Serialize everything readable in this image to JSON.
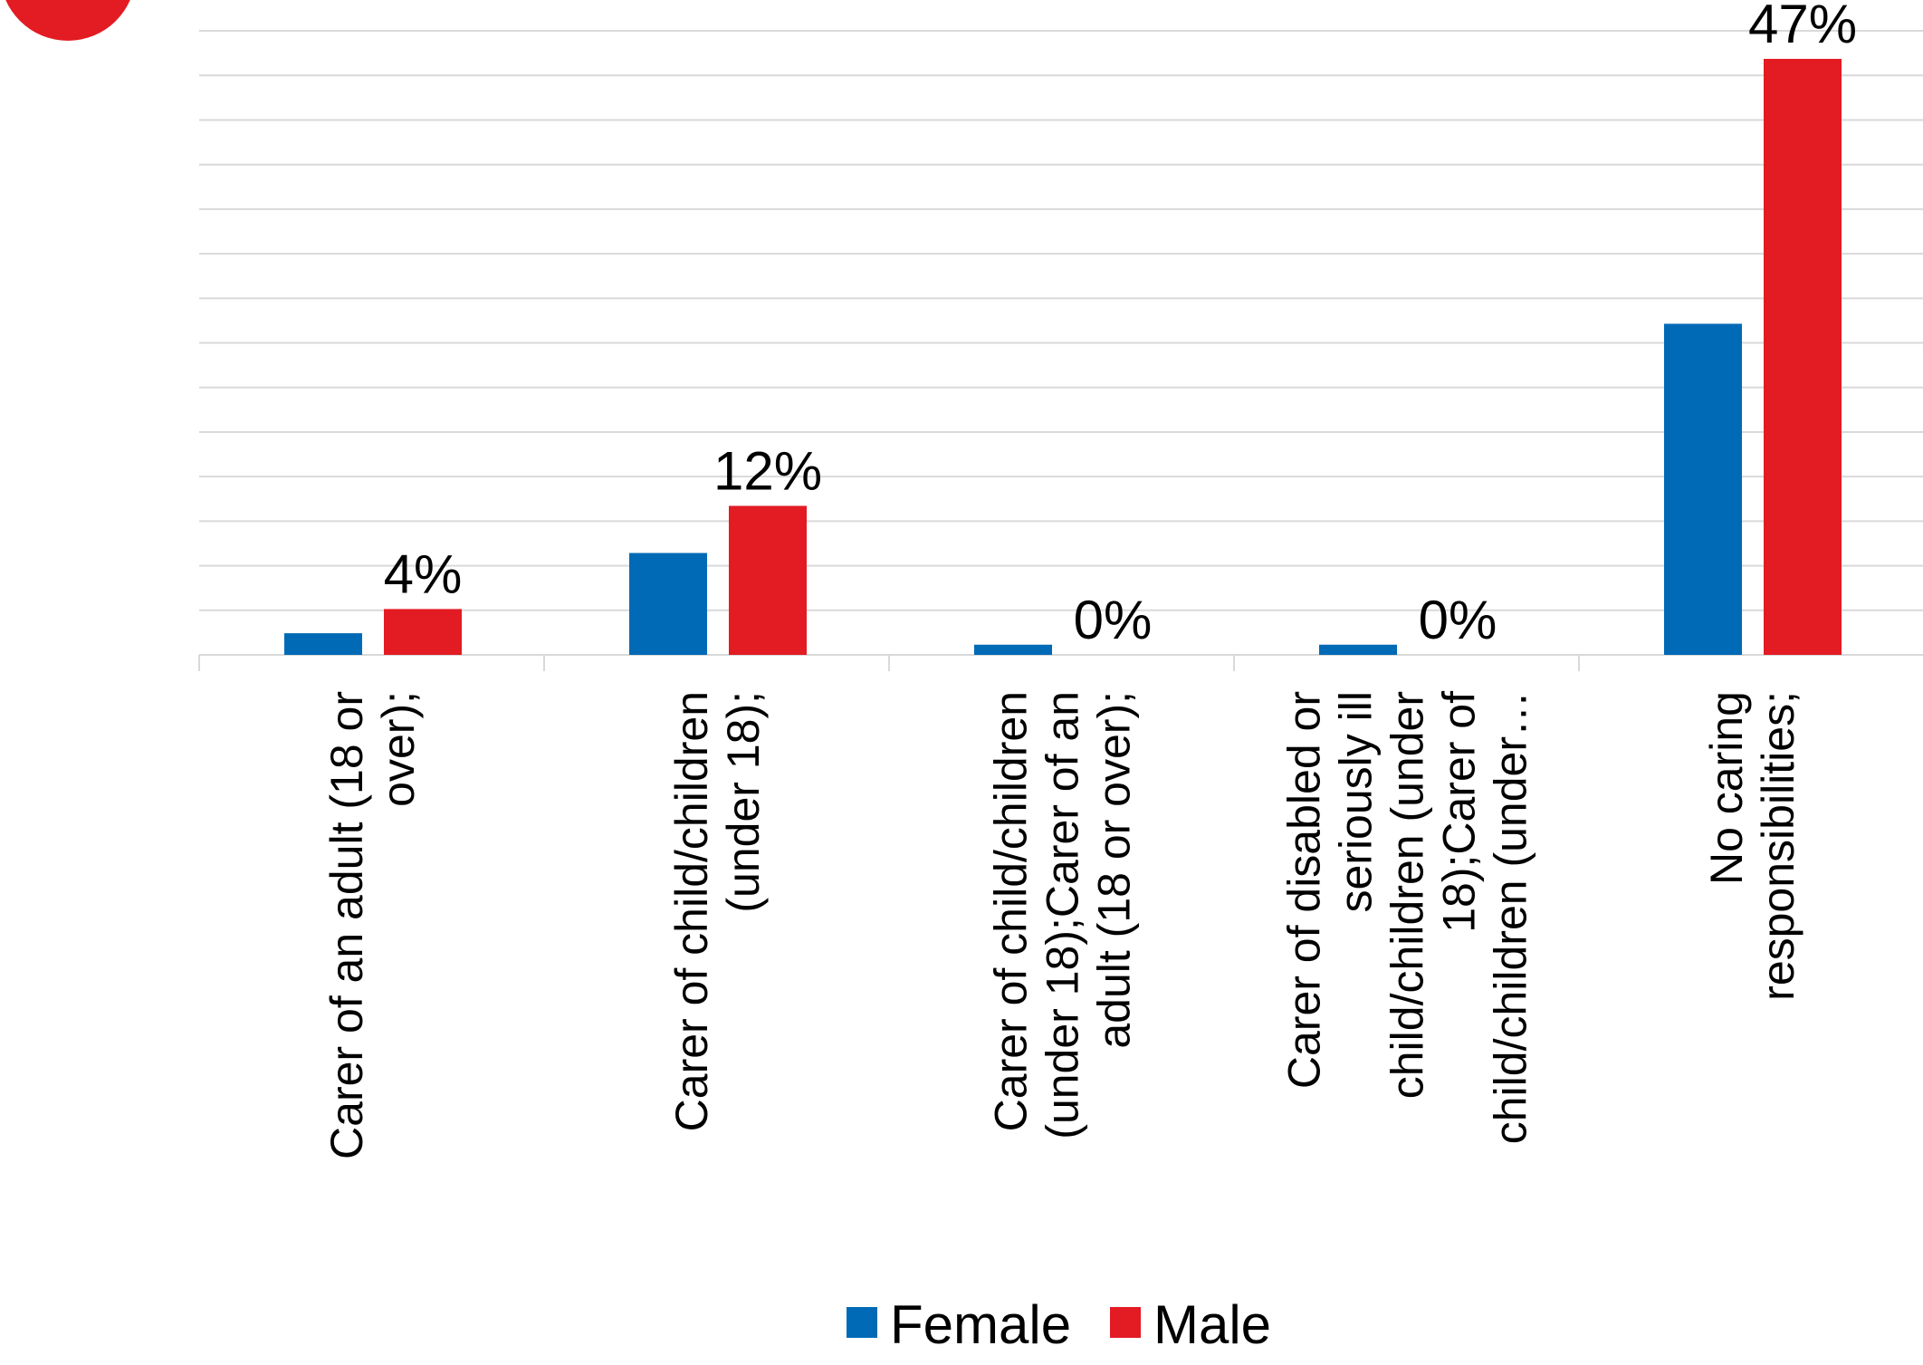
{
  "badge": {
    "color": "#e31b23"
  },
  "chart_data": {
    "type": "bar",
    "title": "",
    "xlabel": "",
    "ylabel": "",
    "ylim": [
      0,
      50
    ],
    "grid": true,
    "legend_position": "bottom",
    "categories": [
      [
        "Carer of an adult (18 or",
        "over);"
      ],
      [
        "Carer of child/children",
        "(under 18);"
      ],
      [
        "Carer of child/children",
        "(under 18);Carer of an",
        "adult (18 or over);"
      ],
      [
        "Carer of disabled or",
        "seriously ill",
        "child/children (under",
        "18);Carer of",
        "child/children (under…"
      ],
      [
        "No caring",
        "responsibilities;"
      ]
    ],
    "series": [
      {
        "name": "Female",
        "color": "#006ab6",
        "values": [
          1.7,
          8,
          0.8,
          0.8,
          26
        ],
        "labels": [
          "",
          "",
          "",
          "",
          ""
        ]
      },
      {
        "name": "Male",
        "color": "#e31b23",
        "values": [
          3.6,
          11.7,
          0,
          0,
          46.8
        ],
        "labels": [
          "4%",
          "12%",
          "0%",
          "0%",
          "47%"
        ]
      }
    ]
  }
}
